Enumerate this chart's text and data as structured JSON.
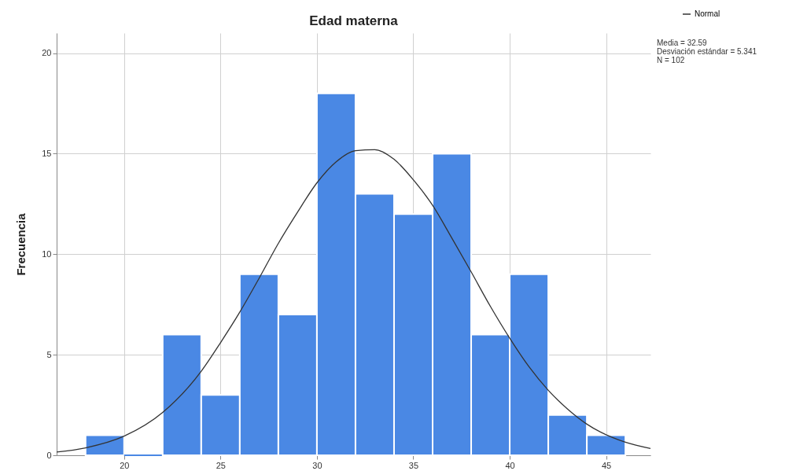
{
  "chart_data": {
    "type": "histogram",
    "title": "Edad materna",
    "ylabel": "Frecuencia",
    "bins": [
      18,
      20,
      22,
      24,
      26,
      28,
      30,
      32,
      34,
      36,
      38,
      40,
      42,
      44,
      46
    ],
    "values": [
      1,
      0,
      6,
      3,
      9,
      7,
      18,
      13,
      12,
      15,
      6,
      9,
      2,
      1
    ],
    "color": "#4a88e4",
    "series": [
      {
        "name": "Normal",
        "type": "line",
        "color": "#333333",
        "x": [
          16.5,
          18,
          20,
          22,
          24,
          25,
          26,
          27,
          28,
          29,
          30,
          31,
          32,
          33,
          34,
          35,
          36,
          37,
          38,
          39,
          40,
          41,
          42,
          43,
          44,
          46,
          47.3
        ],
        "values": [
          0.16,
          0.37,
          0.95,
          2.13,
          4.18,
          5.6,
          7.12,
          8.8,
          10.54,
          12.1,
          13.55,
          14.6,
          15.15,
          15.2,
          14.72,
          13.7,
          12.43,
          10.8,
          9.12,
          7.4,
          5.82,
          4.4,
          3.23,
          2.3,
          1.55,
          0.65,
          0.34
        ]
      }
    ],
    "xlim": [
      16.5,
      47.3
    ],
    "ylim": [
      0,
      21
    ],
    "xticks": [
      20,
      25,
      30,
      35,
      40,
      45
    ],
    "yticks": [
      0,
      5,
      10,
      15,
      20
    ],
    "grid": true,
    "legend": "top right",
    "annotations": [
      "Media = 32.59",
      "Desviación estándar = 5.341",
      "N = 102"
    ]
  }
}
